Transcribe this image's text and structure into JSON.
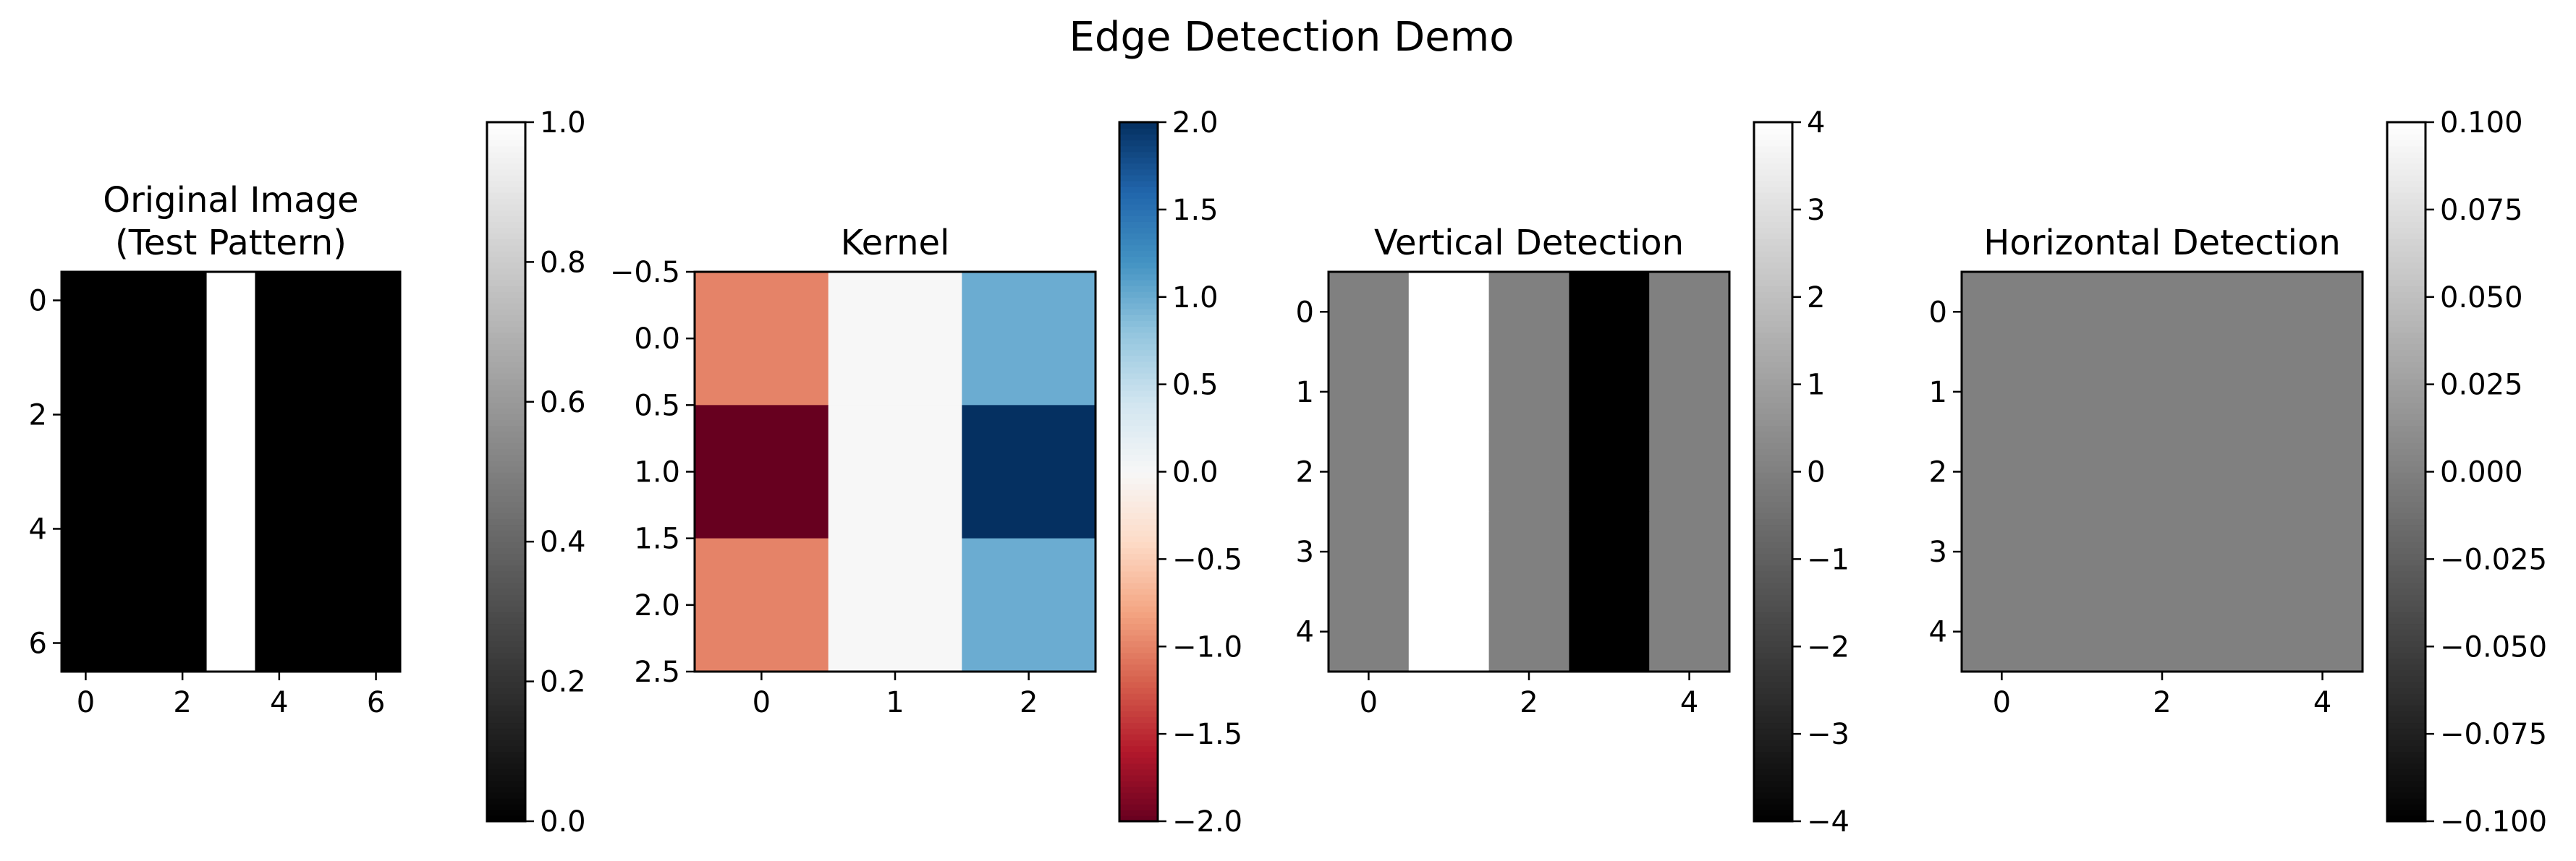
{
  "figure": {
    "suptitle": "Edge Detection Demo"
  },
  "chart_data": [
    {
      "type": "heatmap",
      "title": "Original Image\n(Test Pattern)",
      "colormap": "gray",
      "vlim": [
        0,
        1
      ],
      "extent": {
        "x": [
          -0.5,
          6.5
        ],
        "y_top": -0.5,
        "y_bottom": 6.5
      },
      "xticks": [
        {
          "v": 0,
          "t": "0"
        },
        {
          "v": 2,
          "t": "2"
        },
        {
          "v": 4,
          "t": "4"
        },
        {
          "v": 6,
          "t": "6"
        }
      ],
      "yticks": [
        {
          "v": 0,
          "t": "0"
        },
        {
          "v": 2,
          "t": "2"
        },
        {
          "v": 4,
          "t": "4"
        },
        {
          "v": 6,
          "t": "6"
        }
      ],
      "cbar_ticks": [
        {
          "v": 0.0,
          "t": "0.0"
        },
        {
          "v": 0.2,
          "t": "0.2"
        },
        {
          "v": 0.4,
          "t": "0.4"
        },
        {
          "v": 0.6,
          "t": "0.6"
        },
        {
          "v": 0.8,
          "t": "0.8"
        },
        {
          "v": 1.0,
          "t": "1.0"
        }
      ],
      "values": [
        [
          0,
          0,
          0,
          1,
          0,
          0,
          0
        ],
        [
          0,
          0,
          0,
          1,
          0,
          0,
          0
        ],
        [
          0,
          0,
          0,
          1,
          0,
          0,
          0
        ],
        [
          0,
          0,
          0,
          1,
          0,
          0,
          0
        ],
        [
          0,
          0,
          0,
          1,
          0,
          0,
          0
        ],
        [
          0,
          0,
          0,
          1,
          0,
          0,
          0
        ],
        [
          0,
          0,
          0,
          1,
          0,
          0,
          0
        ]
      ]
    },
    {
      "type": "heatmap",
      "title": "Kernel",
      "colormap": "RdBu",
      "vlim": [
        -2,
        2
      ],
      "extent": {
        "x": [
          -0.5,
          2.5
        ],
        "y_top": -0.5,
        "y_bottom": 2.5
      },
      "xticks": [
        {
          "v": 0,
          "t": "0"
        },
        {
          "v": 1,
          "t": "1"
        },
        {
          "v": 2,
          "t": "2"
        }
      ],
      "yticks": [
        {
          "v": -0.5,
          "t": "−0.5"
        },
        {
          "v": 0.0,
          "t": "0.0"
        },
        {
          "v": 0.5,
          "t": "0.5"
        },
        {
          "v": 1.0,
          "t": "1.0"
        },
        {
          "v": 1.5,
          "t": "1.5"
        },
        {
          "v": 2.0,
          "t": "2.0"
        },
        {
          "v": 2.5,
          "t": "2.5"
        }
      ],
      "cbar_ticks": [
        {
          "v": -2.0,
          "t": "−2.0"
        },
        {
          "v": -1.5,
          "t": "−1.5"
        },
        {
          "v": -1.0,
          "t": "−1.0"
        },
        {
          "v": -0.5,
          "t": "−0.5"
        },
        {
          "v": 0.0,
          "t": "0.0"
        },
        {
          "v": 0.5,
          "t": "0.5"
        },
        {
          "v": 1.0,
          "t": "1.0"
        },
        {
          "v": 1.5,
          "t": "1.5"
        },
        {
          "v": 2.0,
          "t": "2.0"
        }
      ],
      "values": [
        [
          -1,
          0,
          1
        ],
        [
          -2,
          0,
          2
        ],
        [
          -1,
          0,
          1
        ]
      ]
    },
    {
      "type": "heatmap",
      "title": "Vertical Detection",
      "colormap": "gray",
      "vlim": [
        -4,
        4
      ],
      "extent": {
        "x": [
          -0.5,
          4.5
        ],
        "y_top": -0.5,
        "y_bottom": 4.5
      },
      "xticks": [
        {
          "v": 0,
          "t": "0"
        },
        {
          "v": 2,
          "t": "2"
        },
        {
          "v": 4,
          "t": "4"
        }
      ],
      "yticks": [
        {
          "v": 0,
          "t": "0"
        },
        {
          "v": 1,
          "t": "1"
        },
        {
          "v": 2,
          "t": "2"
        },
        {
          "v": 3,
          "t": "3"
        },
        {
          "v": 4,
          "t": "4"
        }
      ],
      "cbar_ticks": [
        {
          "v": -4,
          "t": "−4"
        },
        {
          "v": -3,
          "t": "−3"
        },
        {
          "v": -2,
          "t": "−2"
        },
        {
          "v": -1,
          "t": "−1"
        },
        {
          "v": 0,
          "t": "0"
        },
        {
          "v": 1,
          "t": "1"
        },
        {
          "v": 2,
          "t": "2"
        },
        {
          "v": 3,
          "t": "3"
        },
        {
          "v": 4,
          "t": "4"
        }
      ],
      "values": [
        [
          0,
          4,
          0,
          -4,
          0
        ],
        [
          0,
          4,
          0,
          -4,
          0
        ],
        [
          0,
          4,
          0,
          -4,
          0
        ],
        [
          0,
          4,
          0,
          -4,
          0
        ],
        [
          0,
          4,
          0,
          -4,
          0
        ]
      ]
    },
    {
      "type": "heatmap",
      "title": "Horizontal Detection",
      "colormap": "gray",
      "vlim": [
        -0.1,
        0.1
      ],
      "extent": {
        "x": [
          -0.5,
          4.5
        ],
        "y_top": -0.5,
        "y_bottom": 4.5
      },
      "xticks": [
        {
          "v": 0,
          "t": "0"
        },
        {
          "v": 2,
          "t": "2"
        },
        {
          "v": 4,
          "t": "4"
        }
      ],
      "yticks": [
        {
          "v": 0,
          "t": "0"
        },
        {
          "v": 1,
          "t": "1"
        },
        {
          "v": 2,
          "t": "2"
        },
        {
          "v": 3,
          "t": "3"
        },
        {
          "v": 4,
          "t": "4"
        }
      ],
      "cbar_ticks": [
        {
          "v": -0.1,
          "t": "−0.100"
        },
        {
          "v": -0.075,
          "t": "−0.075"
        },
        {
          "v": -0.05,
          "t": "−0.050"
        },
        {
          "v": -0.025,
          "t": "−0.025"
        },
        {
          "v": 0.0,
          "t": "0.000"
        },
        {
          "v": 0.025,
          "t": "0.025"
        },
        {
          "v": 0.05,
          "t": "0.050"
        },
        {
          "v": 0.075,
          "t": "0.075"
        },
        {
          "v": 0.1,
          "t": "0.100"
        }
      ],
      "values": [
        [
          0,
          0,
          0,
          0,
          0
        ],
        [
          0,
          0,
          0,
          0,
          0
        ],
        [
          0,
          0,
          0,
          0,
          0
        ],
        [
          0,
          0,
          0,
          0,
          0
        ],
        [
          0,
          0,
          0,
          0,
          0
        ]
      ]
    }
  ]
}
